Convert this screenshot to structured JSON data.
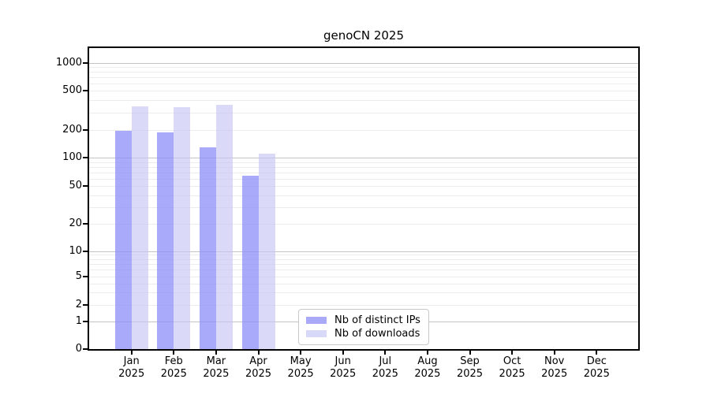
{
  "title": "genoCN 2025",
  "chart_data": {
    "type": "bar",
    "title": "genoCN 2025",
    "yscale": "symlog",
    "grid": "horizontal",
    "legend_position": "lower-center",
    "ylim": [
      0,
      1450
    ],
    "y_ticks": [
      0,
      1,
      2,
      5,
      10,
      20,
      50,
      100,
      200,
      500,
      1000
    ],
    "categories": [
      {
        "month": "Jan",
        "year": "2025"
      },
      {
        "month": "Feb",
        "year": "2025"
      },
      {
        "month": "Mar",
        "year": "2025"
      },
      {
        "month": "Apr",
        "year": "2025"
      },
      {
        "month": "May",
        "year": "2025"
      },
      {
        "month": "Jun",
        "year": "2025"
      },
      {
        "month": "Jul",
        "year": "2025"
      },
      {
        "month": "Aug",
        "year": "2025"
      },
      {
        "month": "Sep",
        "year": "2025"
      },
      {
        "month": "Oct",
        "year": "2025"
      },
      {
        "month": "Nov",
        "year": "2025"
      },
      {
        "month": "Dec",
        "year": "2025"
      }
    ],
    "series": [
      {
        "name": "Nb of distinct IPs",
        "swatch_color": "#a9a9f8",
        "fill_color": "rgba(141,141,248,0.75)",
        "values": [
          195,
          190,
          130,
          65,
          null,
          null,
          null,
          null,
          null,
          null,
          null,
          null
        ]
      },
      {
        "name": "Nb of downloads",
        "swatch_color": "#d8d8f8",
        "fill_color": "rgba(198,198,245,0.65)",
        "values": [
          350,
          340,
          360,
          110,
          null,
          null,
          null,
          null,
          null,
          null,
          null,
          null
        ]
      }
    ],
    "colors": {
      "major_grid": "#c4c4c4",
      "minor_grid": "#ececec",
      "axis": "#000000",
      "background": "#ffffff"
    }
  }
}
